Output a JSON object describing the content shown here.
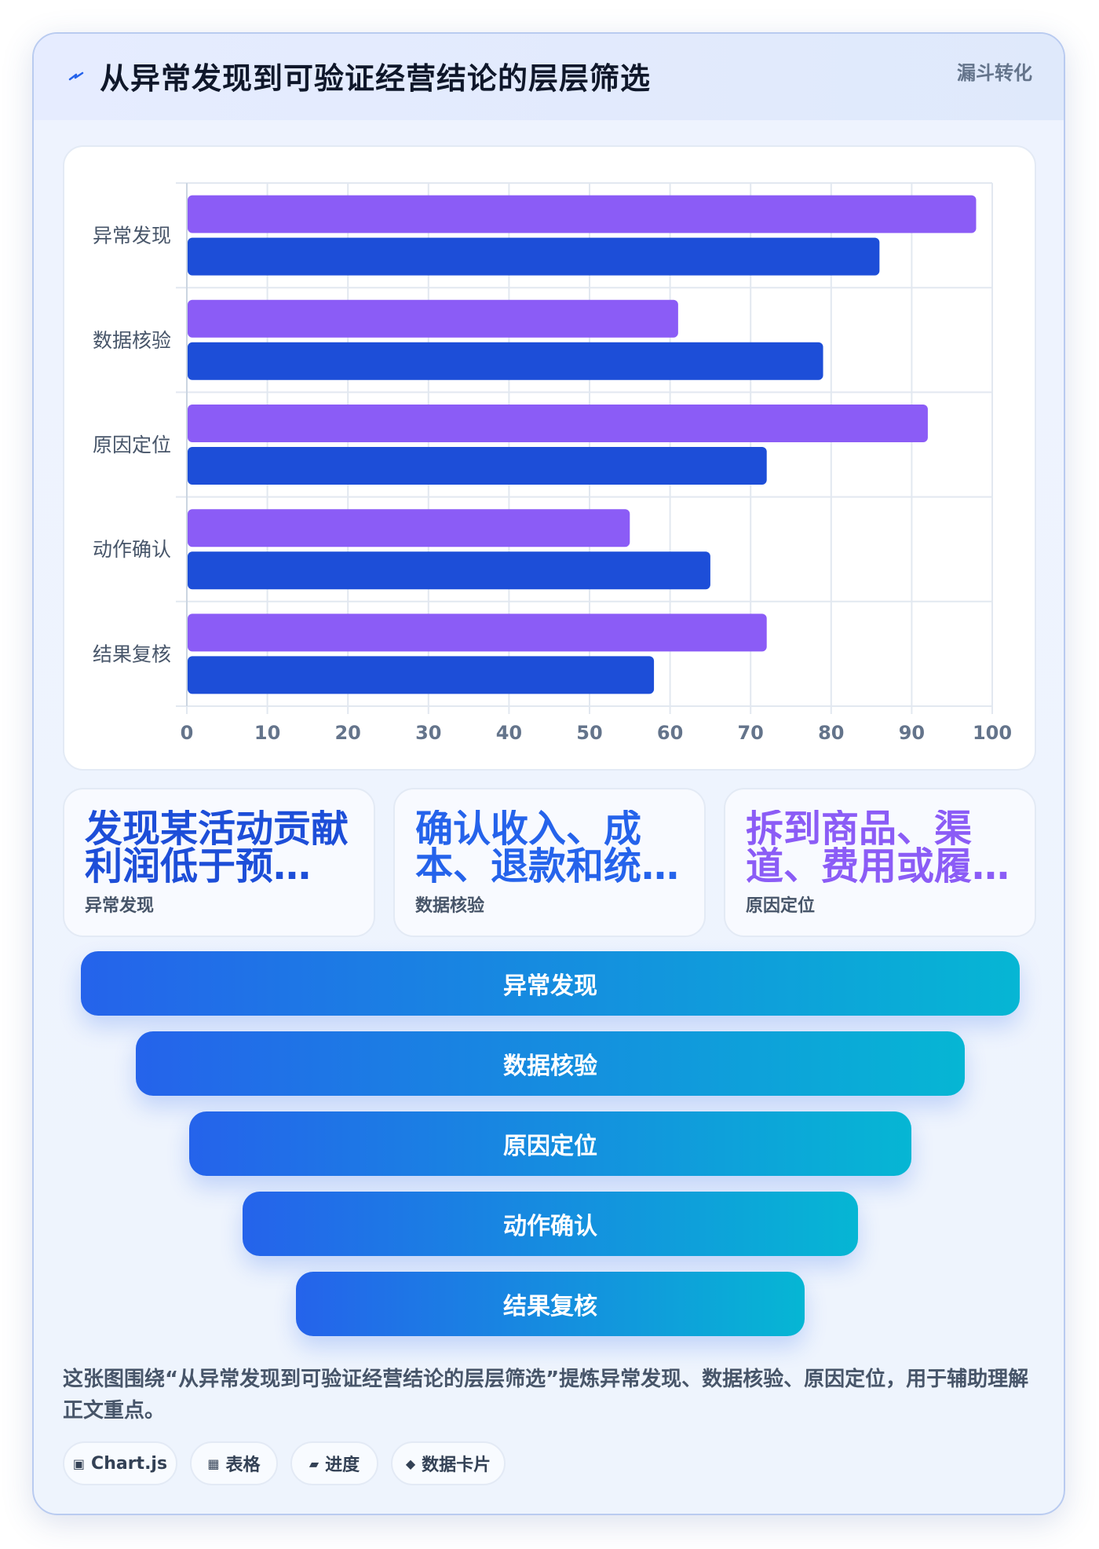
{
  "header": {
    "icon": "lightning-icon",
    "title": "从异常发现到可验证经营结论的层层筛选",
    "tag": "漏斗转化"
  },
  "chart_data": {
    "type": "bar",
    "orientation": "horizontal",
    "categories": [
      "异常发现",
      "数据核验",
      "原因定位",
      "动作确认",
      "结果复核"
    ],
    "series": [
      {
        "values": [
          98,
          61,
          92,
          55,
          72
        ],
        "color": "#8b5cf6"
      },
      {
        "values": [
          86,
          79,
          72,
          65,
          58
        ],
        "color": "#1d4ed8"
      }
    ],
    "xlim": [
      0,
      100
    ],
    "x_ticks": [
      "0",
      "10",
      "20",
      "30",
      "40",
      "50",
      "60",
      "70",
      "80",
      "90",
      "100"
    ],
    "grid": true
  },
  "cards": [
    {
      "value": "发现某活动贡献利润低于预…",
      "label": "异常发现",
      "color": "#1d4ed8"
    },
    {
      "value": "确认收入、成本、退款和统…",
      "label": "数据核验",
      "color": "#2563eb"
    },
    {
      "value": "拆到商品、渠道、费用或履…",
      "label": "原因定位",
      "color": "#8b5cf6"
    }
  ],
  "funnel": [
    "异常发现",
    "数据核验",
    "原因定位",
    "动作确认",
    "结果复核"
  ],
  "description": "这张图围绕“从异常发现到可验证经营结论的层层筛选”提炼异常发现、数据核验、原因定位，用于辅助理解正文重点。",
  "chips": [
    {
      "icon": "▣",
      "label": "Chart.js"
    },
    {
      "icon": "▦",
      "label": "表格"
    },
    {
      "icon": "▰",
      "label": "进度"
    },
    {
      "icon": "◆",
      "label": "数据卡片"
    }
  ],
  "colors": {
    "accent_purple": "#8b5cf6",
    "accent_blue": "#1d4ed8",
    "funnel_start": "#2563eb",
    "funnel_end": "#06b6d4"
  }
}
